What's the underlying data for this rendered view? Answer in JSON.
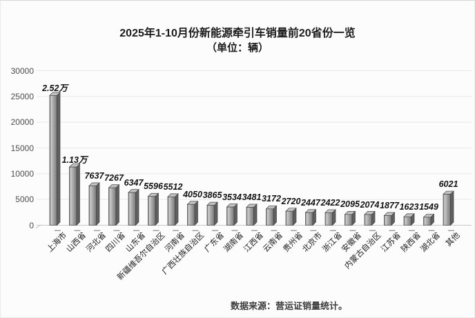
{
  "title": {
    "line1": "2025年1-10月份新能源牵引车销量前20省份一览",
    "line2": "（单位：辆）"
  },
  "footer": {
    "source": "数据来源：营运证销量统计。"
  },
  "chart_data": {
    "type": "bar",
    "style": "3d-column-grey",
    "title": "2025年1-10月份新能源牵引车销量前20省份一览",
    "subtitle": "（单位：辆）",
    "categories": [
      "上海市",
      "山西省",
      "河北省",
      "四川省",
      "山东省",
      "新疆维吾尔自治区",
      "河南省",
      "广西壮族自治区",
      "广东省",
      "湖南省",
      "江西省",
      "云南省",
      "贵州省",
      "北京市",
      "浙江省",
      "安徽省",
      "内蒙古自治区",
      "江苏省",
      "陕西省",
      "湖北省",
      "其他"
    ],
    "values": [
      25200,
      11300,
      7637,
      7267,
      6347,
      5596,
      5512,
      4050,
      3865,
      3534,
      3481,
      3172,
      2720,
      2447,
      2422,
      2095,
      2074,
      1877,
      1623,
      1549,
      6021
    ],
    "value_labels": [
      "2.52万",
      "1.13万",
      "7637",
      "7267",
      "6347",
      "5596",
      "5512",
      "4050",
      "3865",
      "3534",
      "3481",
      "3172",
      "2720",
      "2447",
      "2422",
      "2095",
      "2074",
      "1877",
      "1623",
      "1549",
      "6021"
    ],
    "xlabel": "",
    "ylabel": "",
    "ylim": [
      0,
      30000
    ],
    "yticks": [
      0,
      5000,
      10000,
      15000,
      20000,
      25000,
      30000
    ],
    "grid": true,
    "legend": false,
    "colors": {
      "bar_front_light": "#cdcdcd",
      "bar_front_mid": "#a8a8a8",
      "bar_front_dark": "#747474",
      "bar_side": "#5f5f5f",
      "bar_top": "#c2c2c2",
      "bar_outline": "#454545",
      "gridline": "#e7e7e7",
      "axis_line": "#c9c9c9",
      "tick_mark": "#9a9a9a"
    }
  }
}
